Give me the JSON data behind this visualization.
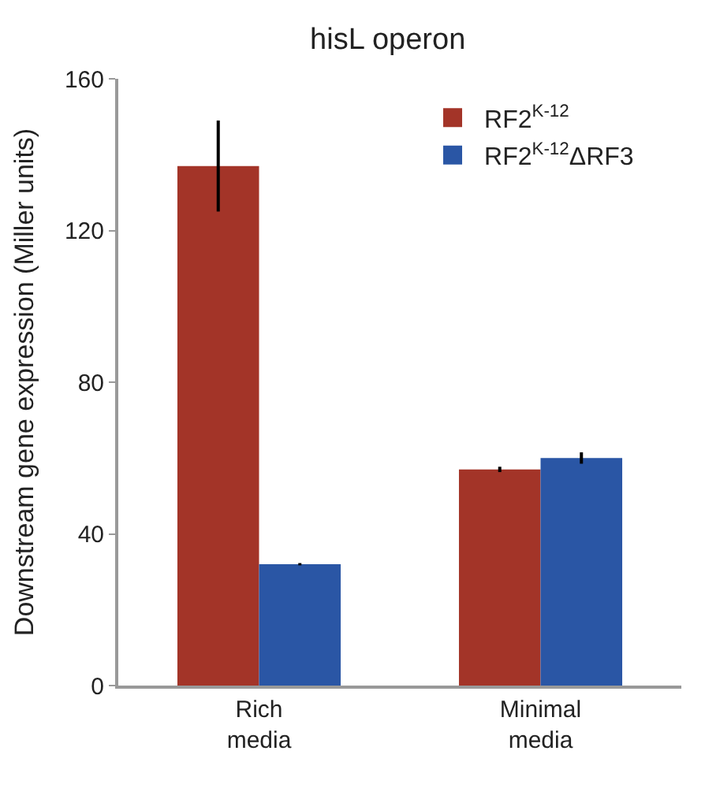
{
  "chart_data": {
    "type": "bar",
    "title": "hisL operon",
    "ylabel": "Downstream gene expression (Miller units)",
    "categories": [
      "Rich\nmedia",
      "Minimal\nmedia"
    ],
    "series": [
      {
        "name": "RF2$^{K-12}$",
        "color": "#a33428",
        "values": [
          137,
          57
        ],
        "errors": [
          12,
          0.7
        ]
      },
      {
        "name": "RF2$^{K-12}$ΔRF3",
        "color": "#2a56a5",
        "values": [
          32,
          60
        ],
        "errors": [
          0.3,
          1.5
        ]
      }
    ],
    "ylim": [
      0,
      160
    ],
    "yticks": [
      0,
      40,
      80,
      120,
      160
    ],
    "legend": "top right"
  }
}
